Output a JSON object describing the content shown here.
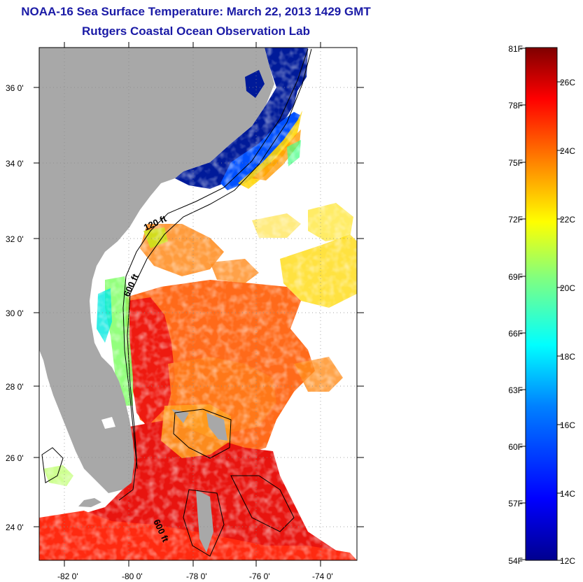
{
  "title": "NOAA-16 Sea Surface Temperature:  March 22, 2013 1429 GMT",
  "subtitle": "Rutgers Coastal Ocean Observation Lab",
  "map": {
    "lat_labels": [
      "36 0'",
      "34 0'",
      "32 0'",
      "30 0'",
      "28 0'",
      "26 0'",
      "24 0'"
    ],
    "lon_labels": [
      "-82 0'",
      "-80 0'",
      "-78 0'",
      "-76 0'",
      "-74 0'"
    ],
    "contour_labels": [
      "120 ft",
      "600 ft",
      "600 ft"
    ],
    "land_color": "#a8a8a8"
  },
  "colorbar": {
    "fahrenheit_labels": [
      "81F",
      "78F",
      "75F",
      "72F",
      "69F",
      "66F",
      "63F",
      "60F",
      "57F",
      "54F"
    ],
    "celsius_labels": [
      "26C",
      "24C",
      "22C",
      "20C",
      "18C",
      "16C",
      "14C",
      "12C"
    ],
    "colors": [
      "#7f0000",
      "#ff0000",
      "#ff8000",
      "#ffff00",
      "#80ff80",
      "#00ffff",
      "#0080ff",
      "#0000ff",
      "#00008f"
    ]
  }
}
